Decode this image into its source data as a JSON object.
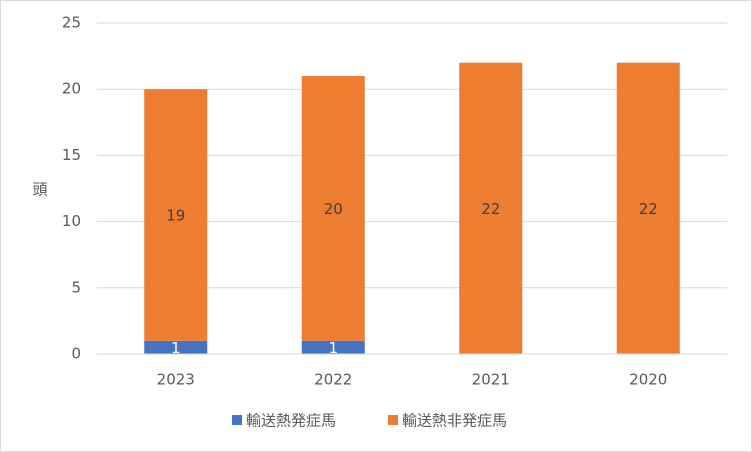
{
  "chart_data": {
    "type": "stacked_bar",
    "y_label": "頭",
    "categories": [
      "2023",
      "2022",
      "2021",
      "2020"
    ],
    "series": [
      {
        "name": "輸送熱発症馬",
        "color": "#4472c4",
        "values": [
          1,
          1,
          null,
          null
        ]
      },
      {
        "name": "輸送熱非発症馬",
        "color": "#ed7d31",
        "values": [
          19,
          20,
          22,
          22
        ]
      }
    ],
    "ylim": [
      0,
      25
    ],
    "yticks": [
      0,
      5,
      10,
      15,
      20,
      25
    ],
    "grid": true,
    "legend": "bottom"
  }
}
